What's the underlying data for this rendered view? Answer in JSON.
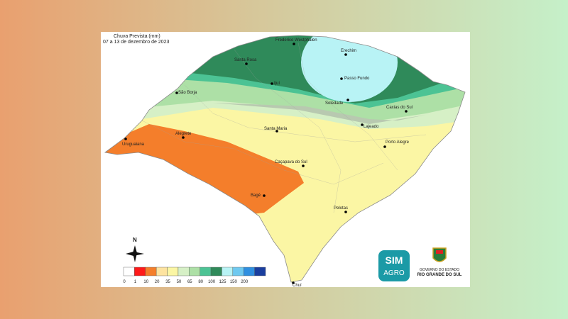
{
  "title": "Chuva Prevista (mm)",
  "subtitle": "07 a 13 de dezembro de 2023",
  "compass": "N",
  "cities": [
    "Frederico Westphalen",
    "Erechim",
    "Passo Fundo",
    "Santa Rosa",
    "Ijuí",
    "São Borja",
    "Soledade",
    "Caxias do Sul",
    "Lajeado",
    "Santa Maria",
    "Alegrete",
    "Uruguaiana",
    "Porto Alegre",
    "Caçapava do Sul",
    "Bagé",
    "Pelotas",
    "Chuí"
  ],
  "legend": {
    "colors": [
      "#ffffff",
      "#ff1a1a",
      "#f47e2b",
      "#fde3a0",
      "#fbf6a4",
      "#d6f0c6",
      "#ade0a6",
      "#4cc394",
      "#2f8a5a",
      "#b8f3f5",
      "#6fc9f0",
      "#2f8fe0",
      "#1a3e9e"
    ],
    "ticks": [
      0,
      1,
      10,
      20,
      35,
      50,
      65,
      80,
      100,
      125,
      150,
      200
    ]
  },
  "logos": {
    "sim": "SIM",
    "agro": "AGRO",
    "gov_line1": "GOVERNO DO ESTADO",
    "gov_line2": "RIO GRANDE DO SUL"
  }
}
